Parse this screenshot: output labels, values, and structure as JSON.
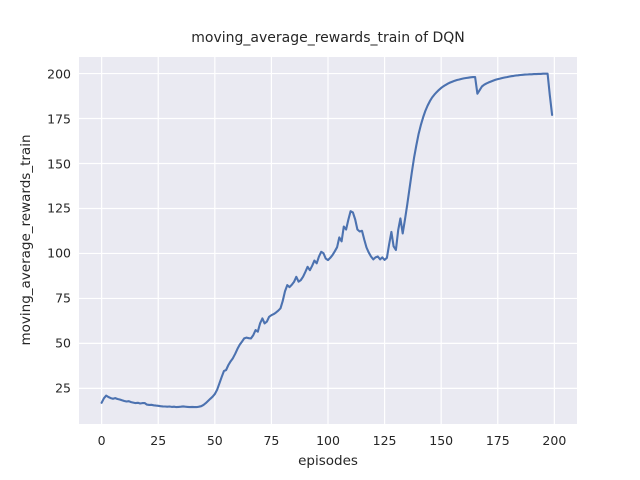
{
  "chart_data": {
    "type": "line",
    "title": "moving_average_rewards_train of DQN",
    "xlabel": "episodes",
    "ylabel": "moving_average_rewards_train",
    "x_ticks": [
      0,
      25,
      50,
      75,
      100,
      125,
      150,
      175,
      200
    ],
    "y_ticks": [
      25,
      50,
      75,
      100,
      125,
      150,
      175,
      200
    ],
    "xlim": [
      -10,
      210
    ],
    "ylim": [
      5.2,
      209.2
    ],
    "grid": true,
    "legend": false,
    "colors": {
      "line": "#4C72B0",
      "plot_background": "#EAEAF2",
      "gridline": "#FFFFFF",
      "figure_background": "#FFFFFF",
      "text": "#262626"
    },
    "series": [
      {
        "name": "moving_average_rewards_train",
        "x_start": 0,
        "x_step": 1,
        "values": [
          17.0,
          19.5,
          21.0,
          20.2,
          19.6,
          19.2,
          19.6,
          19.1,
          18.8,
          18.4,
          18.0,
          17.7,
          17.9,
          17.4,
          17.1,
          16.8,
          17.0,
          16.6,
          16.8,
          16.9,
          16.0,
          15.8,
          15.9,
          15.6,
          15.4,
          15.3,
          15.1,
          15.0,
          14.9,
          14.8,
          14.9,
          14.7,
          14.8,
          14.6,
          14.7,
          14.8,
          15.0,
          14.8,
          14.7,
          14.6,
          14.7,
          14.6,
          14.6,
          14.8,
          15.1,
          15.8,
          16.8,
          18.0,
          19.2,
          20.4,
          21.8,
          24.2,
          27.6,
          31.2,
          34.6,
          35.2,
          38.0,
          40.1,
          41.8,
          44.2,
          47.0,
          49.2,
          51.0,
          52.8,
          53.2,
          52.9,
          52.8,
          54.6,
          57.4,
          56.5,
          61.2,
          63.9,
          61.1,
          62.1,
          64.8,
          65.7,
          66.3,
          67.1,
          68.2,
          69.5,
          73.5,
          79.0,
          82.4,
          81.3,
          82.6,
          84.2,
          87.0,
          84.3,
          85.2,
          87.1,
          89.8,
          92.6,
          90.7,
          93.2,
          96.0,
          94.5,
          98.2,
          100.9,
          100.1,
          97.2,
          96.3,
          97.6,
          99.1,
          101.2,
          103.5,
          108.9,
          106.7,
          115.0,
          113.3,
          118.9,
          123.5,
          122.8,
          118.9,
          113.3,
          112.2,
          112.6,
          107.8,
          103.3,
          100.6,
          98.3,
          96.7,
          97.8,
          98.3,
          96.7,
          97.8,
          96.4,
          97.6,
          105.0,
          112.0,
          104.0,
          101.9,
          113.0,
          119.5,
          111.1,
          119.0,
          127.0,
          136.0,
          145.0,
          153.0,
          160.0,
          166.2,
          171.3,
          175.6,
          179.2,
          182.2,
          184.7,
          186.7,
          188.3,
          189.7,
          190.9,
          192.0,
          192.9,
          193.7,
          194.4,
          195.0,
          195.5,
          196.0,
          196.4,
          196.7,
          197.0,
          197.3,
          197.5,
          197.7,
          197.9,
          198.0,
          198.1,
          188.8,
          190.8,
          192.8,
          193.8,
          194.5,
          195.1,
          195.6,
          196.1,
          196.5,
          196.9,
          197.2,
          197.5,
          197.8,
          198.0,
          198.3,
          198.5,
          198.7,
          198.9,
          199.0,
          199.2,
          199.3,
          199.4,
          199.5,
          199.6,
          199.6,
          199.7,
          199.7,
          199.8,
          199.8,
          199.9,
          199.9,
          199.9,
          188.0,
          177.0
        ]
      }
    ]
  }
}
